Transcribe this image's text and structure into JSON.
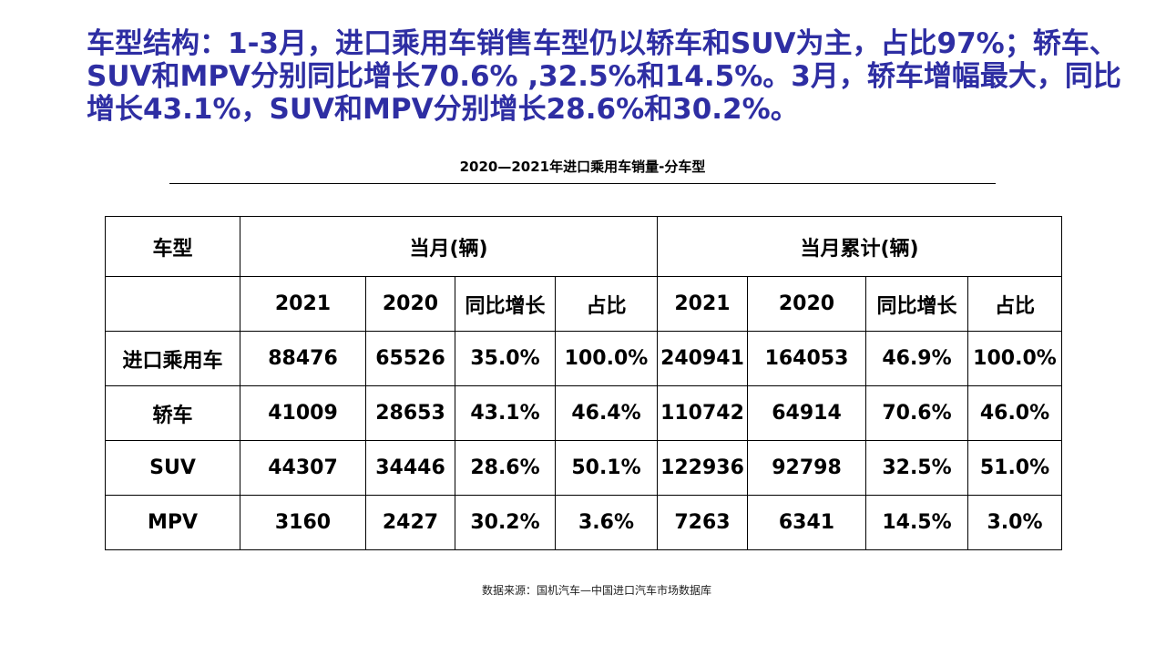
{
  "headline": {
    "line1": "车型结构：1-3月，进口乘用车销售车型仍以轿车和SUV为主，占比97%；轿车、",
    "line2": "SUV和MPV分别同比增长70.6% ,32.5%和14.5%。3月，轿车增幅最大，同比",
    "line3": "增长43.1%，SUV和MPV分别增长28.6%和30.2%。"
  },
  "table_title": "2020—2021年进口乘用车销量-分车型",
  "table": {
    "header": {
      "model": "车型",
      "month_group": "当月(辆)",
      "cumulative_group": "当月累计(辆)"
    },
    "subheader": [
      "2021",
      "2020",
      "同比增长",
      "占比",
      "2021",
      "2020",
      "同比增长",
      "占比"
    ],
    "rows": [
      {
        "model": "进口乘用车",
        "cells": [
          "88476",
          "65526",
          "35.0%",
          "100.0%",
          "240941",
          "164053",
          "46.9%",
          "100.0%"
        ]
      },
      {
        "model": "轿车",
        "cells": [
          "41009",
          "28653",
          "43.1%",
          "46.4%",
          "110742",
          "64914",
          "70.6%",
          "46.0%"
        ]
      },
      {
        "model": "SUV",
        "cells": [
          "44307",
          "34446",
          "28.6%",
          "50.1%",
          "122936",
          "92798",
          "32.5%",
          "51.0%"
        ]
      },
      {
        "model": "MPV",
        "cells": [
          "3160",
          "2427",
          "30.2%",
          "3.6%",
          "7263",
          "6341",
          "14.5%",
          "3.0%"
        ]
      }
    ]
  },
  "source": "数据来源：国机汽车—中国进口汽车市场数据库",
  "colors": {
    "headline": "#2e2ea3",
    "text": "#000000",
    "background": "#ffffff"
  }
}
